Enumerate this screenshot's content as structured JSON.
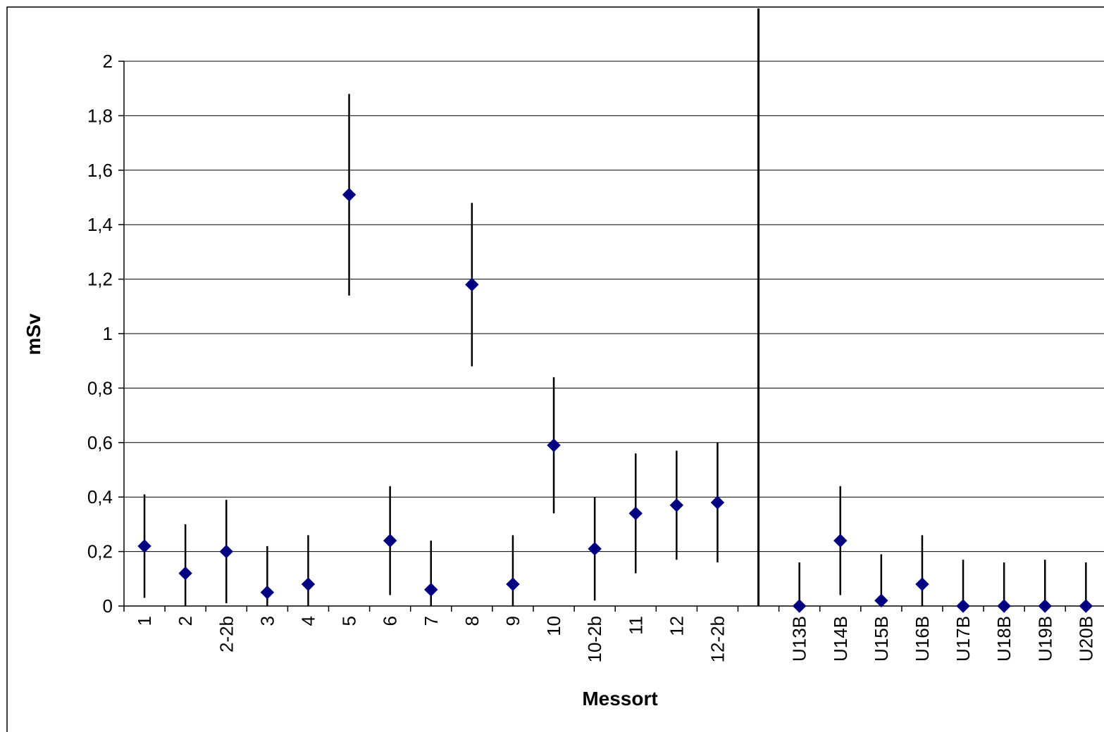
{
  "chart_data": {
    "type": "scatter",
    "xlabel": "Messort",
    "ylabel": "mSv",
    "ylim": [
      0,
      2
    ],
    "y_ticks": [
      {
        "value": 0,
        "label": "0"
      },
      {
        "value": 0.2,
        "label": "0,2"
      },
      {
        "value": 0.4,
        "label": "0,4"
      },
      {
        "value": 0.6,
        "label": "0,6"
      },
      {
        "value": 0.8,
        "label": "0,8"
      },
      {
        "value": 1,
        "label": "1"
      },
      {
        "value": 1.2,
        "label": "1,2"
      },
      {
        "value": 1.4,
        "label": "1,4"
      },
      {
        "value": 1.6,
        "label": "1,6"
      },
      {
        "value": 1.8,
        "label": "1,8"
      },
      {
        "value": 2,
        "label": "2"
      }
    ],
    "grid": true,
    "legend": "none",
    "marker_color": "#000080",
    "categories": [
      "1",
      "2",
      "2-2b",
      "3",
      "4",
      "5",
      "6",
      "7",
      "8",
      "9",
      "10",
      "10-2b",
      "11",
      "12",
      "12-2b",
      "",
      "U13B",
      "U14B",
      "U15B",
      "U16B",
      "U17B",
      "U18B",
      "U19B",
      "U20B"
    ],
    "points": [
      {
        "category": "1",
        "value": 0.22,
        "low": 0.03,
        "high": 0.41
      },
      {
        "category": "2",
        "value": 0.12,
        "low": 0.0,
        "high": 0.3
      },
      {
        "category": "2-2b",
        "value": 0.2,
        "low": 0.01,
        "high": 0.39
      },
      {
        "category": "3",
        "value": 0.05,
        "low": 0.0,
        "high": 0.22
      },
      {
        "category": "4",
        "value": 0.08,
        "low": 0.0,
        "high": 0.26
      },
      {
        "category": "5",
        "value": 1.51,
        "low": 1.14,
        "high": 1.88
      },
      {
        "category": "6",
        "value": 0.24,
        "low": 0.04,
        "high": 0.44
      },
      {
        "category": "7",
        "value": 0.06,
        "low": 0.0,
        "high": 0.24
      },
      {
        "category": "8",
        "value": 1.18,
        "low": 0.88,
        "high": 1.48
      },
      {
        "category": "9",
        "value": 0.08,
        "low": 0.0,
        "high": 0.26
      },
      {
        "category": "10",
        "value": 0.59,
        "low": 0.34,
        "high": 0.84
      },
      {
        "category": "10-2b",
        "value": 0.21,
        "low": 0.02,
        "high": 0.4
      },
      {
        "category": "11",
        "value": 0.34,
        "low": 0.12,
        "high": 0.56
      },
      {
        "category": "12",
        "value": 0.37,
        "low": 0.17,
        "high": 0.57
      },
      {
        "category": "12-2b",
        "value": 0.38,
        "low": 0.16,
        "high": 0.6
      },
      {
        "category": "U13B",
        "value": 0.0,
        "low": 0.0,
        "high": 0.16
      },
      {
        "category": "U14B",
        "value": 0.24,
        "low": 0.04,
        "high": 0.44
      },
      {
        "category": "U15B",
        "value": 0.02,
        "low": 0.0,
        "high": 0.19
      },
      {
        "category": "U16B",
        "value": 0.08,
        "low": 0.0,
        "high": 0.26
      },
      {
        "category": "U17B",
        "value": 0.0,
        "low": 0.0,
        "high": 0.17
      },
      {
        "category": "U18B",
        "value": 0.0,
        "low": 0.0,
        "high": 0.16
      },
      {
        "category": "U19B",
        "value": 0.0,
        "low": 0.0,
        "high": 0.17
      },
      {
        "category": "U20B",
        "value": 0.0,
        "low": 0.0,
        "high": 0.16
      }
    ],
    "separator_after_category": "12-2b"
  }
}
